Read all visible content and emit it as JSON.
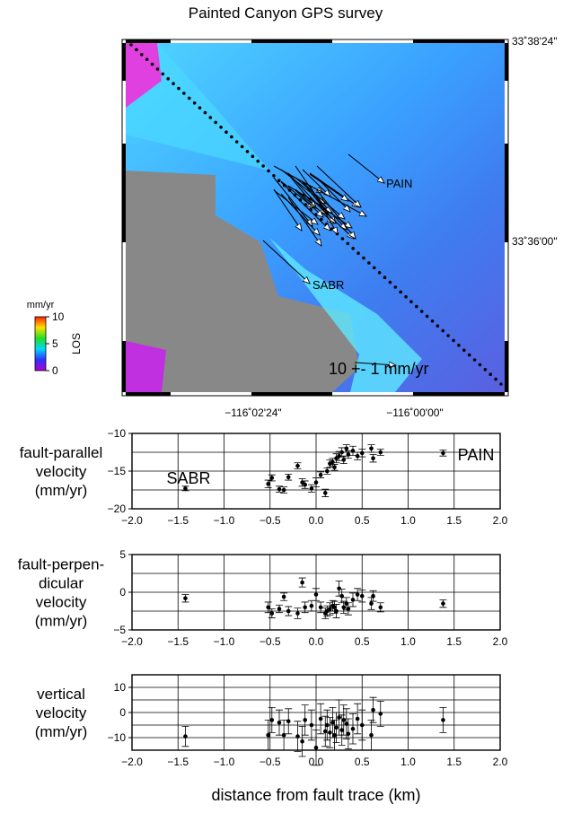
{
  "chart_data": [
    {
      "type": "map",
      "title": "Painted Canyon GPS survey",
      "lat_labels": [
        "33˚38'24\"",
        "33˚36'00\""
      ],
      "lon_labels": [
        "−116˚02'24\"",
        "−116˚00'00\""
      ],
      "annotations": [
        "PAIN",
        "SABR",
        "10 +- 1 mm/yr"
      ],
      "colorbar": {
        "unit": "mm/yr",
        "label": "LOS",
        "lim": [
          0,
          10
        ],
        "ticks": [
          0,
          5,
          10
        ]
      }
    },
    {
      "type": "errorbar",
      "ylabel": [
        "fault-parallel",
        "velocity",
        "(mm/yr)"
      ],
      "annotations": [
        "SABR",
        "PAIN"
      ],
      "xlim": [
        -2,
        2
      ],
      "ylim": [
        -20,
        -10
      ],
      "xticks": [
        {
          "value": -2,
          "label": "−2.0"
        },
        {
          "value": -1.5,
          "label": "−1.5"
        },
        {
          "value": -1,
          "label": "−1.0"
        },
        {
          "value": -0.5,
          "label": "−0.5"
        },
        {
          "value": 0,
          "label": "0.0"
        },
        {
          "value": 0.5,
          "label": "0.5"
        },
        {
          "value": 1,
          "label": "1.0"
        },
        {
          "value": 1.5,
          "label": "1.5"
        },
        {
          "value": 2,
          "label": "2.0"
        }
      ],
      "yticks": [
        {
          "value": -10,
          "label": "−10"
        },
        {
          "value": -15,
          "label": "−15"
        },
        {
          "value": -20,
          "label": "−20"
        }
      ],
      "ygrid": [
        -20,
        -17.5,
        -15,
        -12.5,
        -10
      ],
      "x": [
        -1.42,
        -0.52,
        -0.48,
        -0.4,
        -0.35,
        -0.3,
        -0.2,
        -0.15,
        -0.12,
        -0.05,
        0.0,
        0.05,
        0.1,
        0.12,
        0.15,
        0.18,
        0.2,
        0.22,
        0.25,
        0.28,
        0.3,
        0.33,
        0.35,
        0.4,
        0.45,
        0.5,
        0.6,
        0.62,
        0.7,
        1.38
      ],
      "values": [
        -17.3,
        -16.7,
        -15.9,
        -17.4,
        -17.5,
        -15.8,
        -14.3,
        -16.5,
        -16.8,
        -17.3,
        -16.5,
        -15.5,
        -17.9,
        -15.0,
        -14.0,
        -13.8,
        -14.5,
        -13.3,
        -13.0,
        -12.5,
        -13.5,
        -12.0,
        -12.8,
        -12.3,
        -13.0,
        -12.6,
        -12.0,
        -13.3,
        -12.5,
        -12.6
      ],
      "errors": [
        0.3,
        0.5,
        0.4,
        0.4,
        0.4,
        0.4,
        0.4,
        0.5,
        0.5,
        0.5,
        0.6,
        0.4,
        0.5,
        0.4,
        0.5,
        0.5,
        0.4,
        0.6,
        0.6,
        0.6,
        0.5,
        0.5,
        0.5,
        0.6,
        0.5,
        0.5,
        0.5,
        0.5,
        0.4,
        0.4
      ]
    },
    {
      "type": "errorbar",
      "ylabel": [
        "fault-perpen-",
        "dicular",
        "velocity",
        "(mm/yr)"
      ],
      "annotations": [],
      "xlim": [
        -2,
        2
      ],
      "ylim": [
        -5,
        5
      ],
      "xticks": [
        {
          "value": -2,
          "label": "−2.0"
        },
        {
          "value": -1.5,
          "label": "−1.5"
        },
        {
          "value": -1,
          "label": "−1.0"
        },
        {
          "value": -0.5,
          "label": "−0.5"
        },
        {
          "value": 0,
          "label": "0.0"
        },
        {
          "value": 0.5,
          "label": "0.5"
        },
        {
          "value": 1,
          "label": "1.0"
        },
        {
          "value": 1.5,
          "label": "1.5"
        },
        {
          "value": 2,
          "label": "2.0"
        }
      ],
      "yticks": [
        5,
        0,
        {
          "value": -5,
          "label": "−5"
        }
      ],
      "ygrid": [
        -5,
        -2.5,
        0,
        2.5,
        5
      ],
      "x": [
        -1.42,
        -0.52,
        -0.48,
        -0.4,
        -0.35,
        -0.3,
        -0.2,
        -0.15,
        -0.12,
        -0.05,
        0.0,
        0.05,
        0.1,
        0.12,
        0.15,
        0.18,
        0.2,
        0.22,
        0.25,
        0.28,
        0.3,
        0.33,
        0.35,
        0.4,
        0.45,
        0.5,
        0.6,
        0.62,
        0.7,
        1.38
      ],
      "values": [
        -0.8,
        -2.0,
        -2.8,
        -2.2,
        -0.6,
        -2.5,
        -2.8,
        1.3,
        -2.0,
        -1.8,
        -0.3,
        -2.0,
        -2.8,
        -2.5,
        -2.2,
        -1.8,
        -2.0,
        -2.5,
        0.5,
        -0.5,
        -2.0,
        -1.5,
        -2.2,
        -1.0,
        -0.3,
        -0.5,
        -1.5,
        -0.5,
        -2.0,
        -1.5
      ],
      "errors": [
        0.5,
        0.7,
        0.6,
        0.5,
        0.5,
        0.6,
        0.7,
        0.6,
        0.7,
        0.7,
        0.8,
        0.7,
        0.7,
        0.7,
        0.8,
        0.7,
        0.8,
        0.9,
        1.0,
        0.9,
        0.8,
        0.8,
        0.8,
        0.9,
        0.8,
        0.8,
        0.8,
        0.7,
        0.6,
        0.5
      ]
    },
    {
      "type": "errorbar",
      "ylabel": [
        "vertical",
        "velocity",
        "(mm/yr)"
      ],
      "annotations": [],
      "xlabel": "distance from fault trace (km)",
      "xlim": [
        -2,
        2
      ],
      "ylim": [
        -15,
        15
      ],
      "xticks": [
        {
          "value": -2,
          "label": "−2.0"
        },
        {
          "value": -1.5,
          "label": "−1.5"
        },
        {
          "value": -1,
          "label": "−1.0"
        },
        {
          "value": -0.5,
          "label": "−0.5"
        },
        {
          "value": 0,
          "label": "0.0"
        },
        {
          "value": 0.5,
          "label": "0.5"
        },
        {
          "value": 1,
          "label": "1.0"
        },
        {
          "value": 1.5,
          "label": "1.5"
        },
        {
          "value": 2,
          "label": "2.0"
        }
      ],
      "yticks": [
        10,
        0,
        {
          "value": -10,
          "label": "−10"
        }
      ],
      "ygrid": [
        -15,
        -10,
        -5,
        0,
        5,
        10,
        15
      ],
      "x": [
        -1.42,
        -0.52,
        -0.48,
        -0.4,
        -0.35,
        -0.3,
        -0.2,
        -0.15,
        -0.12,
        -0.05,
        0.0,
        0.05,
        0.1,
        0.12,
        0.15,
        0.18,
        0.2,
        0.22,
        0.25,
        0.28,
        0.3,
        0.33,
        0.35,
        0.4,
        0.45,
        0.5,
        0.6,
        0.62,
        0.7,
        1.38
      ],
      "values": [
        -9.5,
        -9.0,
        -3.0,
        -4.0,
        -9.0,
        -3.5,
        -9.5,
        -11.5,
        -3.0,
        -5.0,
        -14.0,
        -2.5,
        -7.5,
        -5.0,
        -8.0,
        -4.0,
        -9.0,
        -6.0,
        -2.0,
        -7.0,
        -3.0,
        -4.5,
        -8.5,
        -6.5,
        -2.5,
        -5.0,
        -9.0,
        1.0,
        -0.5,
        -3.0
      ],
      "errors": [
        4,
        6,
        5,
        5,
        6,
        5,
        6,
        6,
        6,
        6,
        7,
        6,
        6,
        6,
        6,
        6,
        6,
        6,
        7,
        6,
        6,
        6,
        6,
        6,
        6,
        6,
        6,
        5,
        5,
        5
      ]
    }
  ]
}
